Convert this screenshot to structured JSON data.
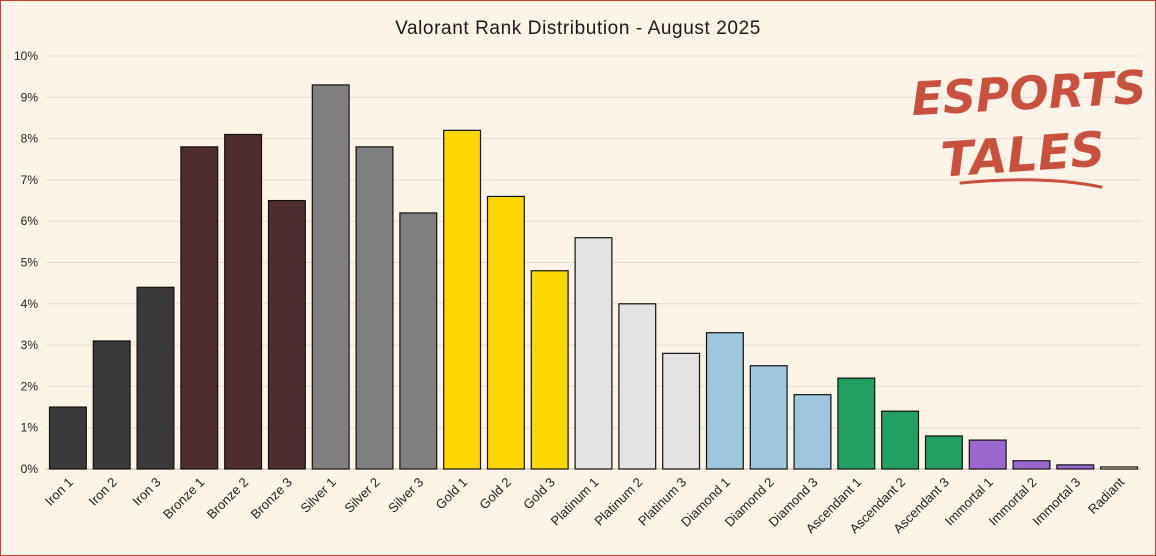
{
  "chart_data": {
    "type": "bar",
    "title": "Valorant Rank Distribution - August 2025",
    "xlabel": "",
    "ylabel": "",
    "ylim": [
      0,
      10
    ],
    "ytick_labels": [
      "0%",
      "1%",
      "2%",
      "3%",
      "4%",
      "5%",
      "6%",
      "7%",
      "8%",
      "9%",
      "10%"
    ],
    "grid": true,
    "categories": [
      "Iron 1",
      "Iron 2",
      "Iron 3",
      "Bronze 1",
      "Bronze 2",
      "Bronze 3",
      "Silver 1",
      "Silver 2",
      "Silver 3",
      "Gold 1",
      "Gold 2",
      "Gold 3",
      "Platinum 1",
      "Platinum 2",
      "Platinum 3",
      "Diamond 1",
      "Diamond 2",
      "Diamond 3",
      "Ascendant 1",
      "Ascendant 2",
      "Ascendant 3",
      "Immortal 1",
      "Immortal 2",
      "Immortal 3",
      "Radiant"
    ],
    "values": [
      1.5,
      3.1,
      4.4,
      7.8,
      8.1,
      6.5,
      9.3,
      7.8,
      6.2,
      8.2,
      6.6,
      4.8,
      5.6,
      4.0,
      2.8,
      3.3,
      2.5,
      1.8,
      2.2,
      1.4,
      0.8,
      0.7,
      0.2,
      0.1,
      0.05
    ],
    "colors": [
      "#3a3a3d",
      "#3a3a3d",
      "#3a3a3d",
      "#4e2d2f",
      "#4e2d2f",
      "#4e2d2f",
      "#7f7f7f",
      "#7f7f7f",
      "#7f7f7f",
      "#ffd700",
      "#ffd700",
      "#ffd700",
      "#e3e3e3",
      "#e3e3e3",
      "#e3e3e3",
      "#9ec7de",
      "#9ec7de",
      "#9ec7de",
      "#22a063",
      "#22a063",
      "#22a063",
      "#9a68cf",
      "#9a68cf",
      "#9a68cf",
      "#f2e8c8"
    ]
  },
  "logo": {
    "line1": "ESPORTS",
    "line2": "TALES",
    "color": "#c9503d"
  },
  "theme": {
    "background": "#fdf3e6",
    "border": "#c9402f",
    "gridline": "#e4dbd0"
  }
}
